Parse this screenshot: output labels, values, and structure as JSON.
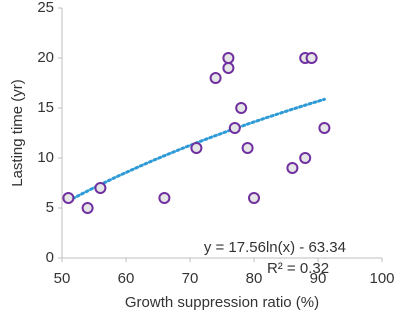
{
  "chart_data": {
    "type": "scatter",
    "x_label": "Growth suppression ratio (%)",
    "y_label": "Lasting time (yr)",
    "series": [
      {
        "color": "#7030a0",
        "x": [
          51,
          54,
          56,
          66,
          71,
          74,
          76,
          76,
          77,
          78,
          79,
          80,
          86,
          88,
          88,
          89,
          91
        ],
        "values": [
          6,
          5,
          7,
          6,
          11,
          18,
          20,
          19,
          13,
          15,
          11,
          6,
          9,
          10,
          20,
          20,
          13
        ]
      }
    ],
    "trendline": {
      "type": "log",
      "color": "#2e9bd6",
      "equation": "y = 17.56ln(x) - 63.34",
      "r2": "R² = 0.32"
    },
    "xlim": [
      50,
      100
    ],
    "xticks": [
      50,
      60,
      70,
      80,
      90,
      100
    ],
    "ylim": [
      0,
      25
    ],
    "yticks": [
      0,
      5,
      10,
      15,
      20,
      25
    ],
    "grid": false
  }
}
